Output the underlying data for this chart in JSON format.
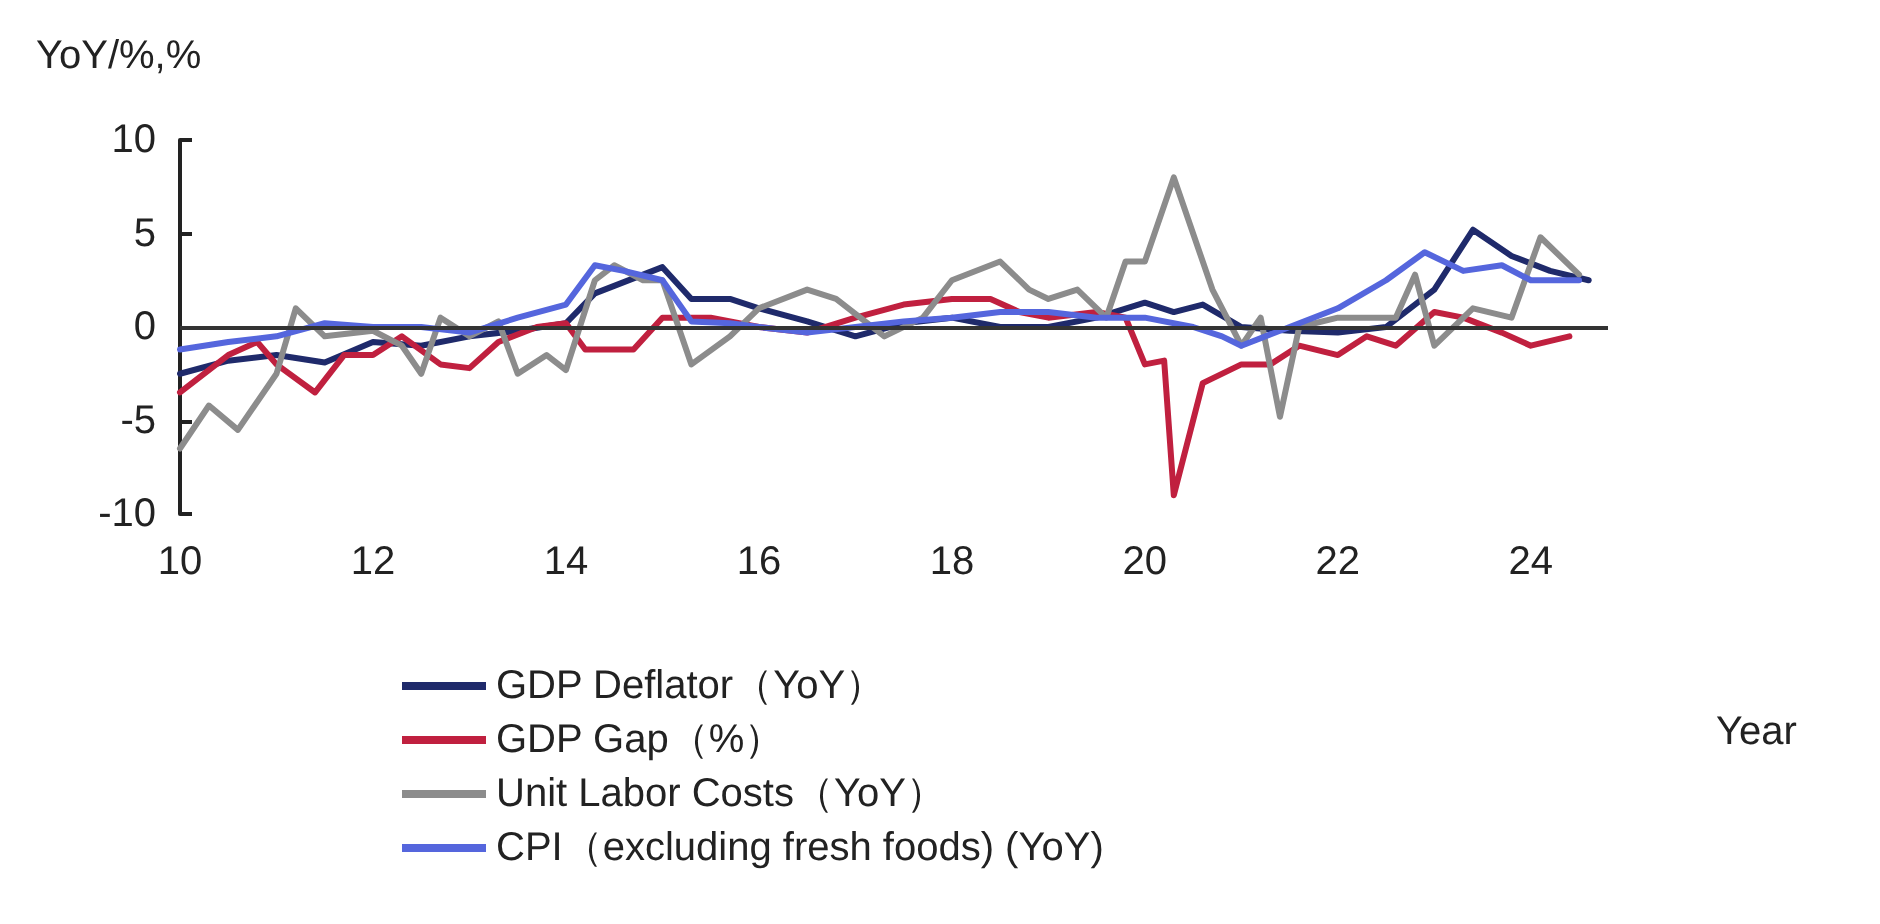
{
  "chart_data": {
    "type": "line",
    "ylabel": "YoY/%,%",
    "xlabel": "Year",
    "xlim": [
      10,
      24.8
    ],
    "xticks": [
      10,
      12,
      14,
      16,
      18,
      20,
      22,
      24
    ],
    "ylim": [
      -10,
      10
    ],
    "yticks": [
      -10,
      -5,
      0,
      5,
      10
    ],
    "grid": false,
    "legend": "bottom",
    "marker": "none",
    "line_style": "solid",
    "ref_lines": [
      {
        "axis": "y",
        "value": 0,
        "color": "#333333"
      }
    ],
    "series": [
      {
        "name": "GDP Deflator（YoY）",
        "color": "#1f2a6b",
        "x": [
          10,
          10.5,
          11,
          11.5,
          12,
          12.5,
          13,
          13.5,
          14,
          14.3,
          14.5,
          15,
          15.3,
          15.7,
          16,
          16.5,
          17,
          17.5,
          18,
          18.5,
          19,
          19.5,
          20,
          20.3,
          20.6,
          21,
          21.5,
          22,
          22.5,
          23,
          23.4,
          23.8,
          24.2,
          24.6
        ],
        "values": [
          -2.5,
          -1.8,
          -1.5,
          -1.9,
          -0.8,
          -1,
          -0.5,
          -0.2,
          0.2,
          1.8,
          2.2,
          3.2,
          1.5,
          1.5,
          1,
          0.3,
          -0.5,
          0.2,
          0.5,
          0,
          0,
          0.5,
          1.3,
          0.8,
          1.2,
          0,
          -0.2,
          -0.3,
          0,
          2,
          5.2,
          3.8,
          3,
          2.5
        ]
      },
      {
        "name": "GDP Gap（%）",
        "color": "#c0203f",
        "x": [
          10,
          10.5,
          10.8,
          11,
          11.4,
          11.7,
          12,
          12.3,
          12.7,
          13,
          13.3,
          13.7,
          14,
          14.2,
          14.7,
          15,
          15.5,
          16,
          16.5,
          17,
          17.5,
          18,
          18.4,
          18.7,
          19,
          19.5,
          19.8,
          20,
          20.2,
          20.3,
          20.6,
          21,
          21.3,
          21.6,
          22,
          22.3,
          22.6,
          23,
          23.3,
          23.7,
          24,
          24.4
        ],
        "values": [
          -3.5,
          -1.5,
          -0.8,
          -2,
          -3.5,
          -1.5,
          -1.5,
          -0.5,
          -2,
          -2.2,
          -0.8,
          0,
          0.2,
          -1.2,
          -1.2,
          0.5,
          0.5,
          0,
          -0.3,
          0.5,
          1.2,
          1.5,
          1.5,
          0.8,
          0.5,
          0.8,
          0.5,
          -2,
          -1.8,
          -9,
          -3,
          -2,
          -2,
          -1,
          -1.5,
          -0.5,
          -1,
          0.8,
          0.5,
          -0.3,
          -1,
          -0.5
        ]
      },
      {
        "name": "Unit Labor Costs（YoY）",
        "color": "#8c8c8c",
        "x": [
          10,
          10.3,
          10.6,
          11,
          11.2,
          11.5,
          12,
          12.3,
          12.5,
          12.7,
          13,
          13.3,
          13.5,
          13.8,
          14,
          14.3,
          14.5,
          14.8,
          15,
          15.3,
          15.7,
          16,
          16.5,
          16.8,
          17.3,
          17.7,
          18,
          18.5,
          18.8,
          19,
          19.3,
          19.6,
          19.8,
          20,
          20.3,
          20.7,
          21,
          21.2,
          21.4,
          21.6,
          22,
          22.3,
          22.6,
          22.8,
          23,
          23.4,
          23.8,
          24.1,
          24.5
        ],
        "values": [
          -6.5,
          -4.2,
          -5.5,
          -2.5,
          1,
          -0.5,
          -0.2,
          -1,
          -2.5,
          0.5,
          -0.5,
          0.3,
          -2.5,
          -1.5,
          -2.3,
          2.5,
          3.3,
          2.5,
          2.5,
          -2,
          -0.5,
          1,
          2,
          1.5,
          -0.5,
          0.5,
          2.5,
          3.5,
          2,
          1.5,
          2,
          0.5,
          3.5,
          3.5,
          8,
          2,
          -1,
          0.5,
          -4.8,
          0,
          0.5,
          0.5,
          0.5,
          2.8,
          -1,
          1,
          0.5,
          4.8,
          2.8
        ]
      },
      {
        "name": "CPI（excluding fresh foods) (YoY)",
        "color": "#5566dd",
        "x": [
          10,
          10.5,
          11,
          11.5,
          12,
          12.5,
          13,
          13.5,
          14,
          14.3,
          14.6,
          15,
          15.3,
          15.7,
          16,
          16.5,
          17,
          17.5,
          18,
          18.5,
          19,
          19.5,
          20,
          20.5,
          20.8,
          21,
          21.5,
          22,
          22.5,
          22.9,
          23.3,
          23.7,
          24,
          24.5
        ],
        "values": [
          -1.2,
          -0.8,
          -0.5,
          0.2,
          0,
          0,
          -0.3,
          0.5,
          1.2,
          3.3,
          3,
          2.5,
          0.3,
          0.2,
          0,
          -0.3,
          0,
          0.3,
          0.5,
          0.8,
          0.8,
          0.5,
          0.5,
          0,
          -0.5,
          -1,
          0,
          1,
          2.5,
          4,
          3,
          3.3,
          2.5,
          2.5
        ]
      }
    ]
  }
}
